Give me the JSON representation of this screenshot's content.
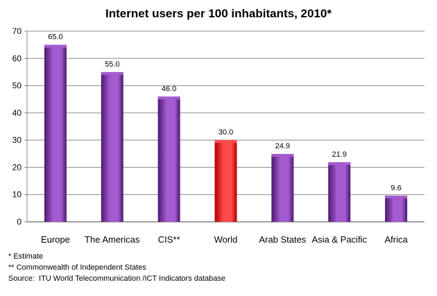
{
  "chart_data": {
    "type": "bar",
    "title": "Internet users per 100 inhabitants, 2010*",
    "xlabel": "",
    "ylabel": "",
    "categories": [
      "Europe",
      "The Americas",
      "CIS**",
      "World",
      "Arab States",
      "Asia & Pacific",
      "Africa"
    ],
    "values": [
      65.0,
      55.0,
      46.0,
      30.0,
      24.9,
      21.9,
      9.6
    ],
    "value_labels": [
      "65.0",
      "55.0",
      "46.0",
      "30.0",
      "24.9",
      "21.9",
      "9.6"
    ],
    "highlight_category": "World",
    "ylim": [
      0,
      70
    ],
    "yticks": [
      0,
      10,
      20,
      30,
      40,
      50,
      60,
      70
    ],
    "grid": true,
    "legend": "none",
    "colors": {
      "bar": "#7B2FA8",
      "bar_light": "#A45BD0",
      "bar_dark": "#4E1870",
      "highlight": "#FF0000",
      "highlight_light": "#FF4A4A",
      "highlight_dark": "#B00000",
      "grid": "#888888",
      "axis": "#888888"
    }
  },
  "footnotes": {
    "estimate": "* Estimate",
    "cis": "** Commonwealth of Independent States",
    "source": "Source:  ITU World Telecommunication /ICT Indicators database"
  }
}
